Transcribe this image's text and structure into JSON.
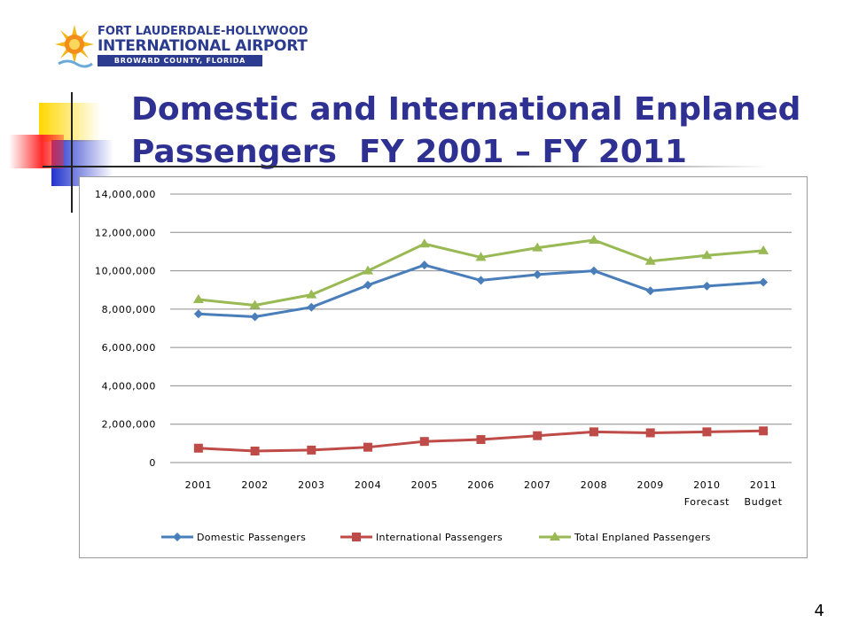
{
  "logo": {
    "line1": "FORT LAUDERDALE-HOLLYWOOD",
    "line2": "INTERNATIONAL AIRPORT",
    "line3": "BROWARD COUNTY, FLORIDA"
  },
  "slide": {
    "title_line1": "Domestic and International Enplaned",
    "title_line2": "Passengers  FY 2001 – FY 2011",
    "page_number": "4"
  },
  "colors": {
    "title": "#2e3192",
    "domestic": "#4a7ebb",
    "international": "#be4b48",
    "total": "#98b954",
    "grid": "#8c8c8c"
  },
  "chart_data": {
    "type": "line",
    "x": [
      "2001",
      "2002",
      "2003",
      "2004",
      "2005",
      "2006",
      "2007",
      "2008",
      "2009",
      "2010",
      "2011"
    ],
    "x_sublabels": [
      "",
      "",
      "",
      "",
      "",
      "",
      "",
      "",
      "",
      "Forecast",
      "Budget"
    ],
    "ylim": [
      0,
      14000000
    ],
    "yticks": [
      0,
      2000000,
      4000000,
      6000000,
      8000000,
      10000000,
      12000000,
      14000000
    ],
    "ytick_labels": [
      "0",
      "2,000,000",
      "4,000,000",
      "6,000,000",
      "8,000,000",
      "10,000,000",
      "12,000,000",
      "14,000,000"
    ],
    "grid": true,
    "legend_position": "bottom",
    "series": [
      {
        "name": "Domestic Passengers",
        "marker": "diamond",
        "color": "#4a7ebb",
        "values": [
          7750000,
          7600000,
          8100000,
          9250000,
          10300000,
          9500000,
          9800000,
          10000000,
          8950000,
          9200000,
          9400000
        ]
      },
      {
        "name": "International Passengers",
        "marker": "square",
        "color": "#be4b48",
        "values": [
          750000,
          600000,
          650000,
          800000,
          1100000,
          1200000,
          1400000,
          1600000,
          1550000,
          1600000,
          1650000
        ]
      },
      {
        "name": "Total Enplaned Passengers",
        "marker": "triangle",
        "color": "#98b954",
        "values": [
          8500000,
          8200000,
          8750000,
          10000000,
          11400000,
          10700000,
          11200000,
          11600000,
          10500000,
          10800000,
          11050000
        ]
      }
    ]
  }
}
